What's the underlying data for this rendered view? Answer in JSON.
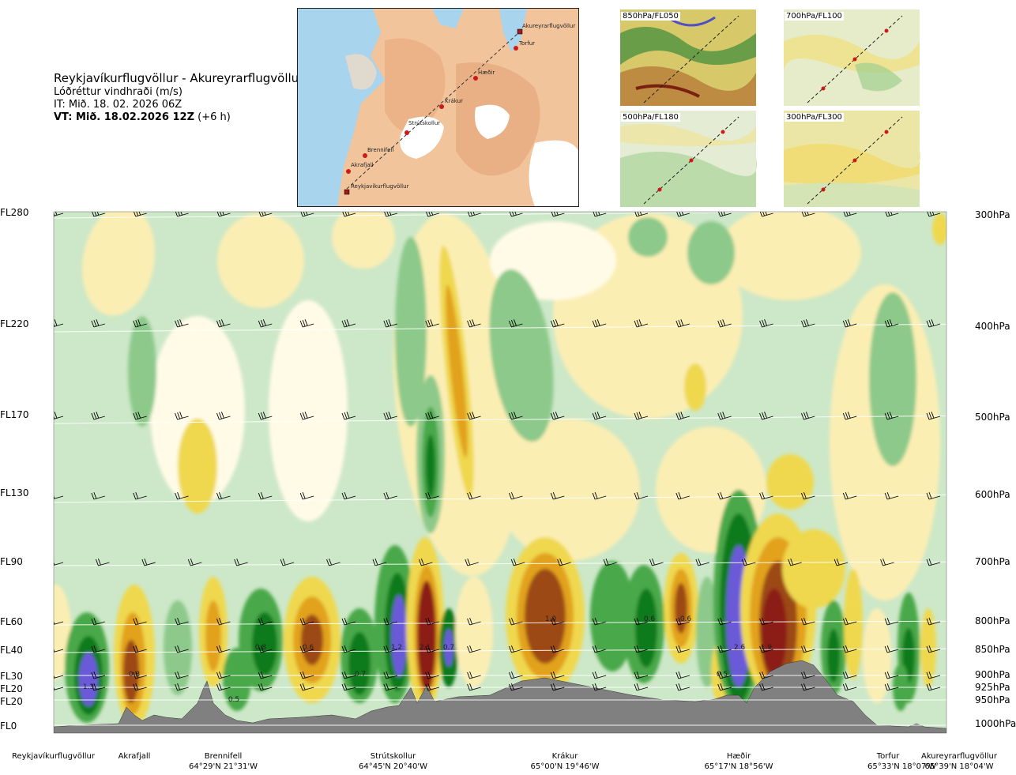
{
  "header": {
    "route": "Reykjavíkurflugvöllur - Akureyrarflugvöllur",
    "variable": "Lóðréttur vindhraði (m/s)",
    "issue_time": "IT: Mið. 18. 02. 2026 06Z",
    "valid_prefix": "VT: Mið. 18.02.2026 12Z",
    "valid_suffix": " (+6 h)"
  },
  "map": {
    "points": [
      "Akureyrarflugvöllur",
      "Torfur",
      "Hæðir",
      "Krákur",
      "Strútskollur",
      "Brennifell",
      "Akrafjall",
      "Reykjavíkurflugvöllur"
    ]
  },
  "mini_maps": [
    "850hPa/FL050",
    "700hPa/FL100",
    "500hPa/FL180",
    "300hPa/FL300"
  ],
  "flight_levels": [
    "FL280",
    "FL220",
    "FL170",
    "FL130",
    "FL90",
    "FL60",
    "FL40",
    "FL30",
    "FL20",
    "FL20",
    "FL0"
  ],
  "pressure_levels": [
    "300hPa",
    "400hPa",
    "500hPa",
    "600hPa",
    "700hPa",
    "800hPa",
    "850hPa",
    "900hPa",
    "925hPa",
    "950hPa",
    "1000hPa"
  ],
  "locations": [
    {
      "name": "Reykjavíkurflugvöllur",
      "coord": ""
    },
    {
      "name": "Akrafjall",
      "coord": ""
    },
    {
      "name": "Brennifell",
      "coord": "64°29'N 21°31'W"
    },
    {
      "name": "Strútskollur",
      "coord": "64°45'N 20°40'W"
    },
    {
      "name": "Krákur",
      "coord": "65°00'N 19°46'W"
    },
    {
      "name": "Hæðir",
      "coord": "65°17'N 18°56'W"
    },
    {
      "name": "Torfur",
      "coord": "65°33'N 18°07'W"
    },
    {
      "name": "Akureyrarflugvöllur",
      "coord": "65°39'N 18°04'W"
    }
  ],
  "chart_data": {
    "type": "heatmap",
    "title": "Lóðréttur vindhraði (m/s)",
    "x_axis": "Reykjavíkurflugvöllur → Akureyrarflugvöllur",
    "y_axis_left": [
      "FL0",
      "FL20",
      "FL20",
      "FL30",
      "FL40",
      "FL60",
      "FL90",
      "FL130",
      "FL170",
      "FL220",
      "FL280"
    ],
    "y_axis_right": [
      "1000hPa",
      "950hPa",
      "925hPa",
      "900hPa",
      "850hPa",
      "800hPa",
      "700hPa",
      "600hPa",
      "500hPa",
      "400hPa",
      "300hPa"
    ],
    "colors": {
      "strong_down": "#6a5ad8",
      "mod_down": "#0d7a1f",
      "weak_down": "#48a84a",
      "slight_down": "#8cc98a",
      "faint_down": "#cde8c8",
      "neutral": "#fffbe6",
      "faint_up": "#fbeeb3",
      "weak_up": "#efd84e",
      "mod_up": "#e2a21d",
      "strong_up": "#9c4a12",
      "extreme_up": "#8b1a14",
      "terrain": "#808080"
    },
    "annotations": [
      {
        "label": "1.3",
        "x_pos": "Reykjavíkurflugvöllur",
        "level": "FL20"
      },
      {
        "label": "0.8",
        "x_pos": "Akrafjall",
        "level": "FL30"
      },
      {
        "label": "0.5",
        "x_pos": "Brennifell",
        "level": "FL20"
      },
      {
        "label": "0.8",
        "x_pos": "Brennifell",
        "level": "FL40"
      },
      {
        "label": "0.6",
        "x_pos": "Brennifell",
        "level": "FL40"
      },
      {
        "label": "0.7",
        "x_pos": "Strútskollur",
        "level": "FL30"
      },
      {
        "label": "1.2",
        "x_pos": "Strútskollur",
        "level": "FL40"
      },
      {
        "label": "2.1",
        "x_pos": "Strútskollur",
        "level": "FL40"
      },
      {
        "label": "0.7",
        "x_pos": "Strútskollur",
        "level": "FL40"
      },
      {
        "label": "1.0",
        "x_pos": "Krákur",
        "level": "FL60"
      },
      {
        "label": "0.6",
        "x_pos": "Krákur",
        "level": "FL60"
      },
      {
        "label": "0.6",
        "x_pos": "Hæðir",
        "level": "FL60"
      },
      {
        "label": "0.5",
        "x_pos": "Hæðir",
        "level": "FL30"
      },
      {
        "label": "2.6",
        "x_pos": "Hæðir",
        "level": "FL40"
      },
      {
        "label": "1.9",
        "x_pos": "Hæðir",
        "level": "FL40"
      }
    ]
  }
}
